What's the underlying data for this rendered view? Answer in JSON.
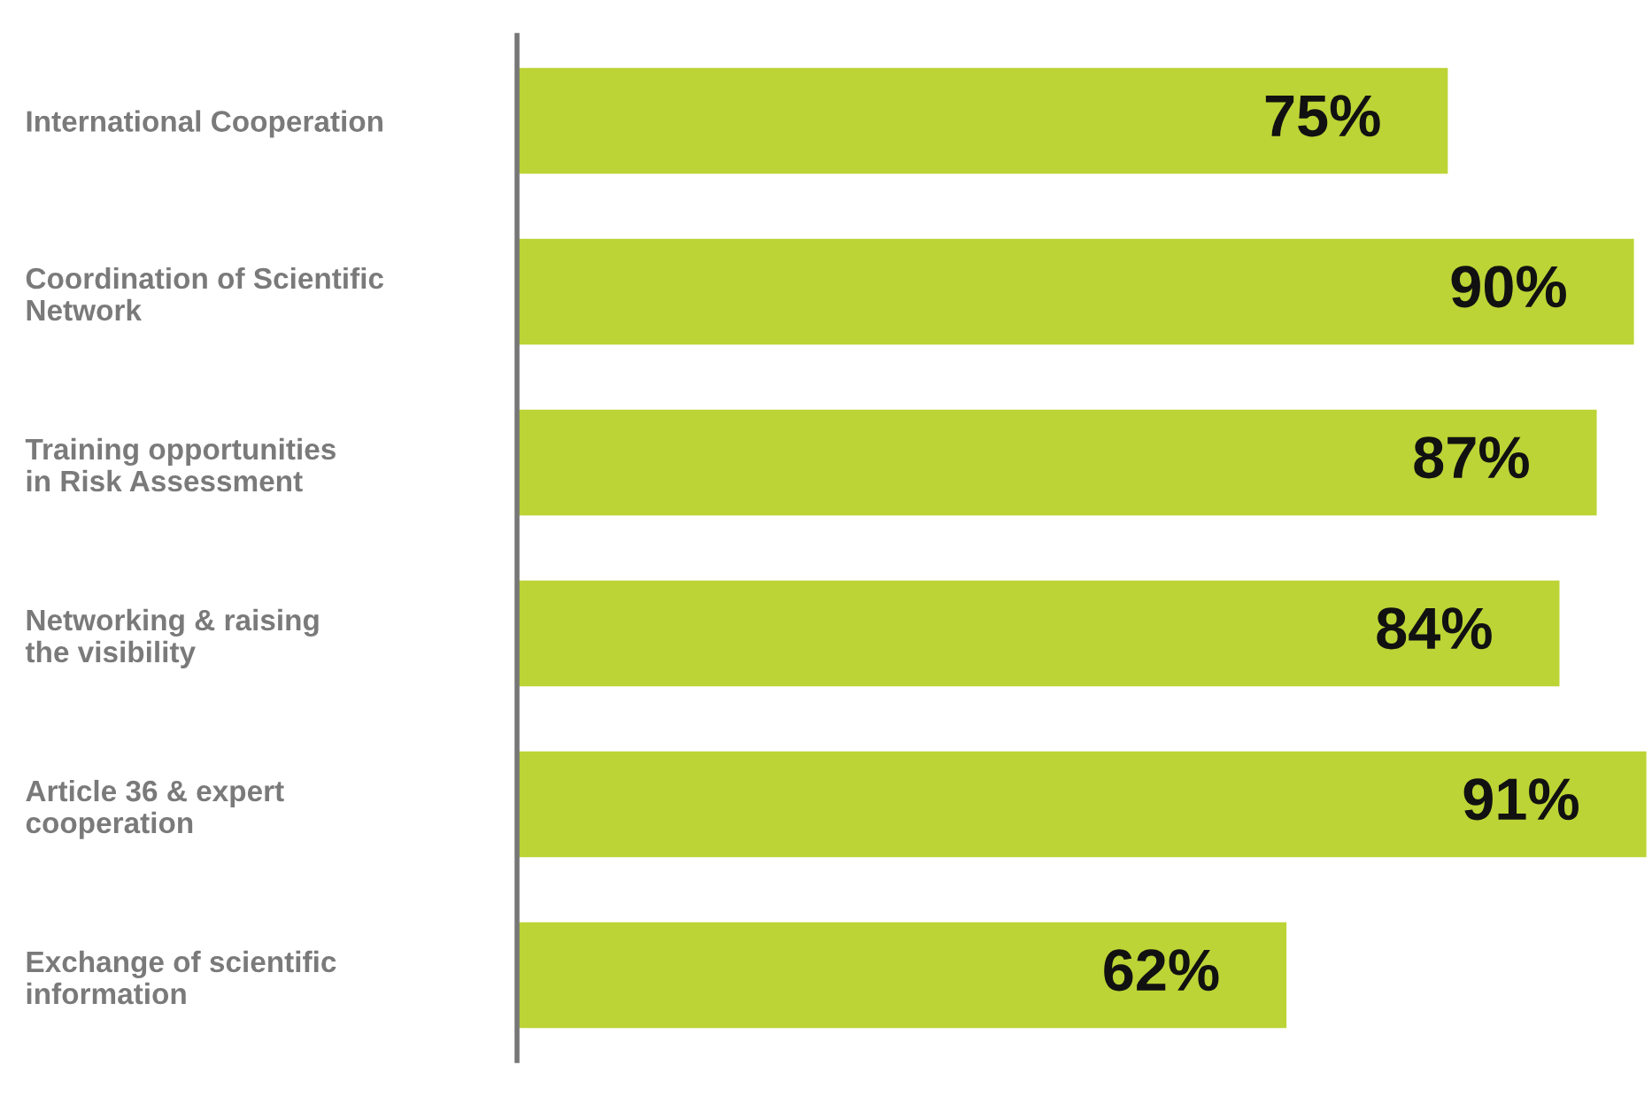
{
  "chart_data": {
    "type": "bar",
    "orientation": "horizontal",
    "categories": [
      "International Cooperation",
      "Coordination of Scientific\nNetwork",
      "Training opportunities\nin Risk Assessment",
      "Networking & raising\nthe visibility",
      "Article 36 & expert\ncooperation",
      "Exchange of scientific\ninformation"
    ],
    "values": [
      75,
      90,
      87,
      84,
      91,
      62
    ],
    "value_labels": [
      "75%",
      "90%",
      "87%",
      "84%",
      "91%",
      "62%"
    ],
    "color": "#bcd435",
    "tick_labels": "y",
    "grid": false,
    "legend": false
  }
}
